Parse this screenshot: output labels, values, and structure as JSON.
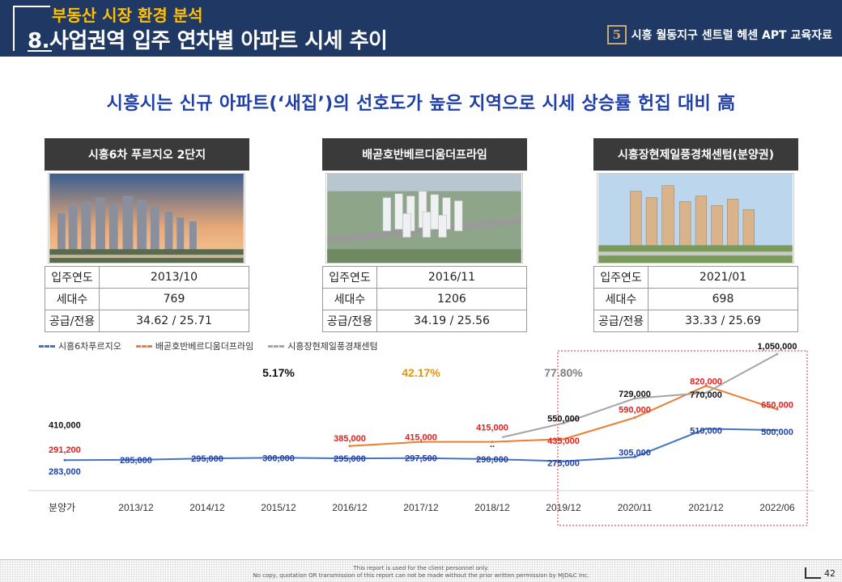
{
  "header": {
    "section": "부동산 시장 환경 분석",
    "title": "8.사업권역 입주 연차별 아파트 시세 추이",
    "brand_logo_letter": "5",
    "brand_text": "시흥 월동지구 센트럴 헤센 APT 교육자료"
  },
  "headline": "시흥시는 신규 아파트(‘새집’)의 선호도가 높은 지역으로 시세 상승률 헌집 대비 高",
  "cards": [
    {
      "name": "시흥6차 푸르지오 2단지",
      "photo": "apartment-complex-sunset-photo",
      "rows": [
        {
          "k": "입주연도",
          "v": "2013/10"
        },
        {
          "k": "세대수",
          "v": "769"
        },
        {
          "k": "공급/전용",
          "v": "34.62 / 25.71"
        }
      ]
    },
    {
      "name": "배곧호반베르디움더프라임",
      "photo": "apartment-complex-aerial-rendering",
      "rows": [
        {
          "k": "입주연도",
          "v": "2016/11"
        },
        {
          "k": "세대수",
          "v": "1206"
        },
        {
          "k": "공급/전용",
          "v": "34.19 / 25.56"
        }
      ]
    },
    {
      "name": "시흥장현제일풍경채센텀(분양권)",
      "photo": "apartment-complex-rendering",
      "rows": [
        {
          "k": "입주연도",
          "v": "2021/01"
        },
        {
          "k": "세대수",
          "v": "698"
        },
        {
          "k": "공급/전용",
          "v": "33.33 / 25.69"
        }
      ]
    }
  ],
  "chart_data": {
    "type": "line",
    "title": "",
    "x": [
      "분양가",
      "2013/12",
      "2014/12",
      "2015/12",
      "2016/12",
      "2017/12",
      "2018/12",
      "2019/12",
      "2020/11",
      "2021/12",
      "2022/06"
    ],
    "series": [
      {
        "name": "시흥6차푸르지오",
        "color": "#4472c4",
        "values": [
          283000,
          285000,
          295000,
          300000,
          295000,
          297500,
          290000,
          275000,
          305000,
          510000,
          500000
        ],
        "labels": [
          "283,000",
          "285,000",
          "295,000",
          "300,000",
          "295,000",
          "297,500",
          "290,000",
          "275,000",
          "305,000",
          "510,000",
          "500,000"
        ]
      },
      {
        "name": "배곧호반베르디움더프라임",
        "color": "#ed7d31",
        "values": [
          291200,
          null,
          null,
          null,
          385000,
          415000,
          415000,
          435000,
          590000,
          820000,
          650000
        ],
        "labels": [
          "291,200",
          "",
          "",
          "",
          "385,000",
          "415,000",
          "415,000",
          "435,000",
          "590,000",
          "820,000",
          "650,000"
        ]
      },
      {
        "name": "시흥장현제일풍경채센텀",
        "color": "#a5a5a5",
        "values": [
          410000,
          null,
          null,
          null,
          null,
          null,
          null,
          550000,
          729000,
          770000,
          1050000
        ],
        "labels": [
          "410,000",
          "",
          "",
          "",
          "",
          "",
          "..",
          "550,000",
          "729,000",
          "770,000",
          "1,050,000"
        ]
      }
    ],
    "annotations": [
      {
        "text": "5.17%",
        "color": "#111111"
      },
      {
        "text": "42.17%",
        "color": "#e69500"
      },
      {
        "text": "77.80%",
        "color": "#808080"
      }
    ],
    "highlight_range": [
      "2019/12",
      "2022/06"
    ],
    "ylim": [
      200000,
      1100000
    ],
    "xlabel": "",
    "ylabel": "",
    "grid": false
  },
  "footer": {
    "line1": "This report is used for the client personnel only.",
    "line2": "No copy,  quotation OR transmission of this report can not be made without the prior written permission by MJD&C Inc.",
    "page": "42"
  }
}
